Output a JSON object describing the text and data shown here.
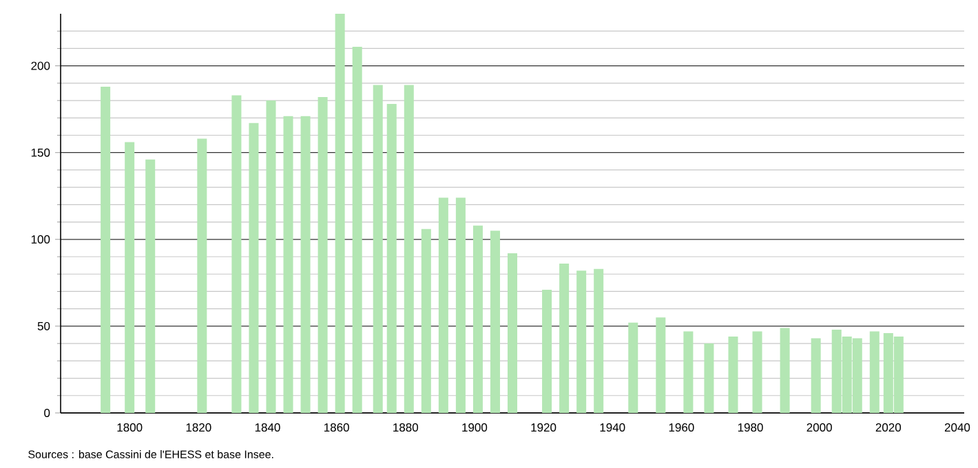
{
  "chart_data": {
    "type": "bar",
    "color": "#b3e6b3",
    "x": [
      1793,
      1800,
      1806,
      1821,
      1831,
      1836,
      1841,
      1846,
      1851,
      1856,
      1861,
      1866,
      1872,
      1876,
      1881,
      1886,
      1891,
      1896,
      1901,
      1906,
      1911,
      1921,
      1926,
      1931,
      1936,
      1946,
      1954,
      1962,
      1968,
      1975,
      1982,
      1990,
      1999,
      2005,
      2008,
      2011,
      2016,
      2020,
      2023
    ],
    "values": [
      188,
      156,
      146,
      158,
      183,
      167,
      180,
      171,
      171,
      182,
      230,
      211,
      189,
      178,
      189,
      106,
      124,
      124,
      108,
      105,
      92,
      71,
      86,
      82,
      83,
      52,
      55,
      47,
      40,
      44,
      47,
      49,
      43,
      48,
      44,
      43,
      47,
      46,
      44
    ],
    "xlim": [
      1780,
      2042
    ],
    "xticks": [
      1800,
      1820,
      1840,
      1860,
      1880,
      1900,
      1920,
      1940,
      1960,
      1980,
      2000,
      2020,
      2040
    ],
    "ylim": [
      0,
      230
    ],
    "yticks": [
      0,
      {
        "value": 10,
        "label": null
      },
      {
        "value": 20,
        "label": null
      },
      {
        "value": 30,
        "label": null
      },
      {
        "value": 40,
        "label": null
      },
      50,
      {
        "value": 60,
        "label": null
      },
      {
        "value": 70,
        "label": null
      },
      {
        "value": 80,
        "label": null
      },
      {
        "value": 90,
        "label": null
      },
      100,
      {
        "value": 110,
        "label": null
      },
      {
        "value": 120,
        "label": null
      },
      {
        "value": 130,
        "label": null
      },
      {
        "value": 140,
        "label": null
      },
      150,
      {
        "value": 160,
        "label": null
      },
      {
        "value": 170,
        "label": null
      },
      {
        "value": 180,
        "label": null
      },
      {
        "value": 190,
        "label": null
      },
      200,
      {
        "value": 210,
        "label": null
      },
      {
        "value": 220,
        "label": null
      }
    ],
    "grid": "y",
    "annotations": [
      "Sources : base Cassini de l'EHESS et base Insee."
    ]
  }
}
